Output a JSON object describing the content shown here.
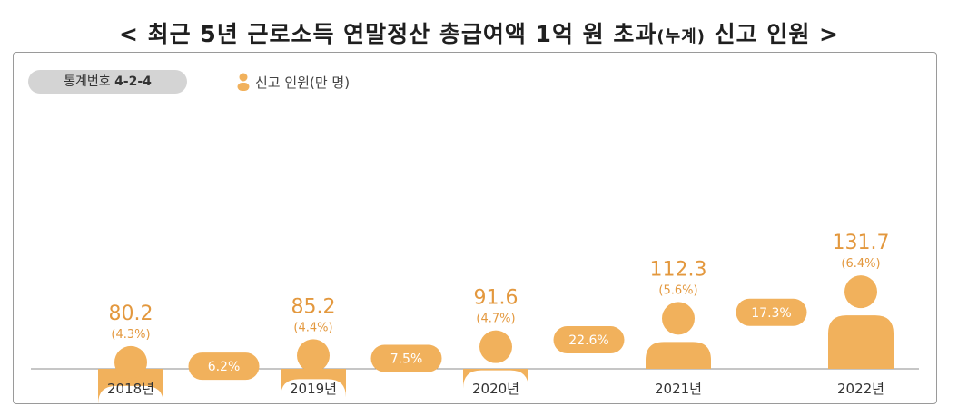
{
  "chart_data": {
    "type": "bar",
    "title": "< 최근 5년 근로소득 연말정산 총급여액 1억 원 초과",
    "title_small": "(누계)",
    "title_end": " 신고 인원 >",
    "stat_badge": {
      "prefix": "통계번호 ",
      "code": "4-2-4"
    },
    "legend": "신고 인원(만 명)",
    "categories": [
      "2018년",
      "2019년",
      "2020년",
      "2021년",
      "2022년"
    ],
    "series": [
      {
        "name": "신고 인원(만 명)",
        "values": [
          80.2,
          85.2,
          91.6,
          112.3,
          131.7
        ],
        "shares": [
          "(4.3%)",
          "(4.4%)",
          "(4.7%)",
          "(5.6%)",
          "(6.4%)"
        ]
      }
    ],
    "value_labels": [
      "80.2",
      "85.2",
      "91.6",
      "112.3",
      "131.7"
    ],
    "growth_labels": [
      "6.2%",
      "7.5%",
      "22.6%",
      "17.3%"
    ],
    "ylim": [
      0,
      140
    ],
    "bar_color": "#f1b15c",
    "growth_text_color": "#ffffff",
    "value_color": "#e3983e",
    "grid": false
  }
}
